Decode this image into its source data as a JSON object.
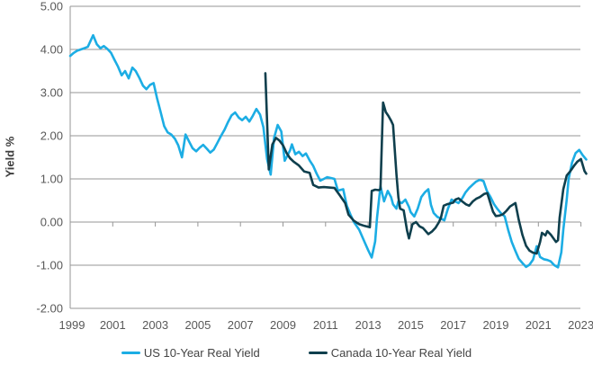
{
  "chart_data": {
    "type": "line",
    "title": "",
    "xlabel": "",
    "ylabel": "Yield %",
    "ylim": [
      -2.0,
      5.0
    ],
    "xlim": [
      1999.0,
      2023.3
    ],
    "grid": "horizontal",
    "legend_position": "bottom",
    "y_tick_labels": [
      "5.00",
      "4.00",
      "3.00",
      "2.00",
      "1.00",
      "0.00",
      "-1.00",
      "-2.00"
    ],
    "y_tick_values": [
      5,
      4,
      3,
      2,
      1,
      0,
      -1,
      -2
    ],
    "x_tick_labels": [
      "1999",
      "2001",
      "2003",
      "2005",
      "2007",
      "2009",
      "2011",
      "2013",
      "2015",
      "2017",
      "2019",
      "2021",
      "2023"
    ],
    "x_tick_values": [
      1999,
      2001,
      2003,
      2005,
      2007,
      2009,
      2011,
      2013,
      2015,
      2017,
      2019,
      2021,
      2023
    ],
    "series": [
      {
        "name": "US 10-Year Real Yield",
        "color": "#1CADE4",
        "points": [
          [
            1999.0,
            3.85
          ],
          [
            1999.17,
            3.92
          ],
          [
            1999.33,
            3.97
          ],
          [
            1999.5,
            4.0
          ],
          [
            1999.67,
            4.03
          ],
          [
            1999.83,
            4.06
          ],
          [
            2000.08,
            4.33
          ],
          [
            2000.25,
            4.12
          ],
          [
            2000.42,
            4.03
          ],
          [
            2000.58,
            4.08
          ],
          [
            2000.75,
            4.01
          ],
          [
            2000.92,
            3.92
          ],
          [
            2001.08,
            3.76
          ],
          [
            2001.25,
            3.6
          ],
          [
            2001.42,
            3.4
          ],
          [
            2001.58,
            3.5
          ],
          [
            2001.75,
            3.33
          ],
          [
            2001.92,
            3.58
          ],
          [
            2002.08,
            3.5
          ],
          [
            2002.25,
            3.34
          ],
          [
            2002.42,
            3.16
          ],
          [
            2002.58,
            3.08
          ],
          [
            2002.75,
            3.18
          ],
          [
            2002.92,
            3.22
          ],
          [
            2003.08,
            2.87
          ],
          [
            2003.25,
            2.55
          ],
          [
            2003.42,
            2.22
          ],
          [
            2003.58,
            2.08
          ],
          [
            2003.75,
            2.03
          ],
          [
            2003.92,
            1.93
          ],
          [
            2004.08,
            1.78
          ],
          [
            2004.25,
            1.5
          ],
          [
            2004.42,
            2.03
          ],
          [
            2004.58,
            1.87
          ],
          [
            2004.75,
            1.71
          ],
          [
            2004.92,
            1.64
          ],
          [
            2005.08,
            1.72
          ],
          [
            2005.25,
            1.79
          ],
          [
            2005.42,
            1.7
          ],
          [
            2005.58,
            1.61
          ],
          [
            2005.75,
            1.68
          ],
          [
            2005.92,
            1.84
          ],
          [
            2006.08,
            1.99
          ],
          [
            2006.25,
            2.14
          ],
          [
            2006.42,
            2.32
          ],
          [
            2006.58,
            2.47
          ],
          [
            2006.75,
            2.54
          ],
          [
            2006.92,
            2.42
          ],
          [
            2007.08,
            2.36
          ],
          [
            2007.25,
            2.44
          ],
          [
            2007.42,
            2.33
          ],
          [
            2007.58,
            2.46
          ],
          [
            2007.75,
            2.62
          ],
          [
            2007.92,
            2.49
          ],
          [
            2008.08,
            2.2
          ],
          [
            2008.25,
            1.46
          ],
          [
            2008.42,
            1.1
          ],
          [
            2008.58,
            1.95
          ],
          [
            2008.75,
            2.25
          ],
          [
            2008.92,
            2.1
          ],
          [
            2009.08,
            1.42
          ],
          [
            2009.33,
            1.66
          ],
          [
            2009.42,
            1.8
          ],
          [
            2009.58,
            1.57
          ],
          [
            2009.75,
            1.63
          ],
          [
            2009.92,
            1.53
          ],
          [
            2010.08,
            1.59
          ],
          [
            2010.25,
            1.43
          ],
          [
            2010.42,
            1.3
          ],
          [
            2010.58,
            1.12
          ],
          [
            2010.75,
            0.96
          ],
          [
            2010.92,
            1.0
          ],
          [
            2011.08,
            1.04
          ],
          [
            2011.25,
            1.02
          ],
          [
            2011.42,
            1.0
          ],
          [
            2011.58,
            0.73
          ],
          [
            2011.83,
            0.76
          ],
          [
            2012.0,
            0.38
          ],
          [
            2012.17,
            0.17
          ],
          [
            2012.33,
            0.0
          ],
          [
            2012.58,
            -0.18
          ],
          [
            2012.83,
            -0.46
          ],
          [
            2013.0,
            -0.65
          ],
          [
            2013.17,
            -0.82
          ],
          [
            2013.33,
            -0.45
          ],
          [
            2013.42,
            0.1
          ],
          [
            2013.58,
            0.83
          ],
          [
            2013.75,
            0.48
          ],
          [
            2013.92,
            0.72
          ],
          [
            2014.08,
            0.58
          ],
          [
            2014.17,
            0.41
          ],
          [
            2014.33,
            0.31
          ],
          [
            2014.42,
            0.48
          ],
          [
            2014.58,
            0.44
          ],
          [
            2014.75,
            0.52
          ],
          [
            2014.92,
            0.35
          ],
          [
            2015.0,
            0.23
          ],
          [
            2015.17,
            0.13
          ],
          [
            2015.33,
            0.31
          ],
          [
            2015.5,
            0.58
          ],
          [
            2015.67,
            0.69
          ],
          [
            2015.83,
            0.76
          ],
          [
            2015.95,
            0.4
          ],
          [
            2016.08,
            0.21
          ],
          [
            2016.25,
            0.12
          ],
          [
            2016.42,
            0.08
          ],
          [
            2016.58,
            0.04
          ],
          [
            2016.75,
            0.31
          ],
          [
            2016.92,
            0.52
          ],
          [
            2017.08,
            0.48
          ],
          [
            2017.25,
            0.44
          ],
          [
            2017.42,
            0.55
          ],
          [
            2017.58,
            0.69
          ],
          [
            2017.75,
            0.79
          ],
          [
            2017.92,
            0.87
          ],
          [
            2018.08,
            0.94
          ],
          [
            2018.25,
            0.98
          ],
          [
            2018.42,
            0.95
          ],
          [
            2018.58,
            0.72
          ],
          [
            2018.75,
            0.58
          ],
          [
            2018.92,
            0.41
          ],
          [
            2019.08,
            0.3
          ],
          [
            2019.25,
            0.2
          ],
          [
            2019.42,
            0.13
          ],
          [
            2019.58,
            -0.18
          ],
          [
            2019.75,
            -0.46
          ],
          [
            2019.92,
            -0.67
          ],
          [
            2020.08,
            -0.85
          ],
          [
            2020.25,
            -0.95
          ],
          [
            2020.42,
            -1.04
          ],
          [
            2020.58,
            -0.99
          ],
          [
            2020.75,
            -0.87
          ],
          [
            2020.92,
            -0.56
          ],
          [
            2021.08,
            -0.81
          ],
          [
            2021.25,
            -0.86
          ],
          [
            2021.42,
            -0.88
          ],
          [
            2021.58,
            -0.91
          ],
          [
            2021.75,
            -1.0
          ],
          [
            2021.92,
            -1.05
          ],
          [
            2022.08,
            -0.7
          ],
          [
            2022.17,
            -0.18
          ],
          [
            2022.33,
            0.52
          ],
          [
            2022.42,
            1.0
          ],
          [
            2022.58,
            1.38
          ],
          [
            2022.75,
            1.6
          ],
          [
            2022.92,
            1.67
          ],
          [
            2023.08,
            1.55
          ],
          [
            2023.25,
            1.45
          ]
        ]
      },
      {
        "name": "Canada 10-Year Real Yield",
        "color": "#0F3F4D",
        "points": [
          [
            2008.17,
            3.45
          ],
          [
            2008.33,
            1.22
          ],
          [
            2008.5,
            1.8
          ],
          [
            2008.67,
            1.95
          ],
          [
            2008.83,
            1.89
          ],
          [
            2009.0,
            1.78
          ],
          [
            2009.17,
            1.6
          ],
          [
            2009.33,
            1.48
          ],
          [
            2009.5,
            1.4
          ],
          [
            2009.75,
            1.31
          ],
          [
            2010.0,
            1.17
          ],
          [
            2010.25,
            1.14
          ],
          [
            2010.42,
            0.86
          ],
          [
            2010.67,
            0.8
          ],
          [
            2010.92,
            0.81
          ],
          [
            2011.17,
            0.8
          ],
          [
            2011.42,
            0.79
          ],
          [
            2011.67,
            0.62
          ],
          [
            2011.92,
            0.44
          ],
          [
            2012.08,
            0.17
          ],
          [
            2012.33,
            0.03
          ],
          [
            2012.58,
            -0.05
          ],
          [
            2012.83,
            -0.09
          ],
          [
            2013.08,
            -0.12
          ],
          [
            2013.17,
            0.72
          ],
          [
            2013.33,
            0.75
          ],
          [
            2013.5,
            0.74
          ],
          [
            2013.58,
            0.76
          ],
          [
            2013.7,
            2.77
          ],
          [
            2013.83,
            2.55
          ],
          [
            2013.95,
            2.46
          ],
          [
            2014.08,
            2.35
          ],
          [
            2014.17,
            2.25
          ],
          [
            2014.33,
            1.1
          ],
          [
            2014.42,
            0.58
          ],
          [
            2014.5,
            0.31
          ],
          [
            2014.67,
            0.27
          ],
          [
            2014.83,
            -0.2
          ],
          [
            2014.92,
            -0.38
          ],
          [
            2015.08,
            -0.05
          ],
          [
            2015.25,
            0.0
          ],
          [
            2015.42,
            -0.1
          ],
          [
            2015.58,
            -0.14
          ],
          [
            2015.83,
            -0.28
          ],
          [
            2016.0,
            -0.22
          ],
          [
            2016.17,
            -0.13
          ],
          [
            2016.33,
            0.0
          ],
          [
            2016.42,
            0.1
          ],
          [
            2016.55,
            0.38
          ],
          [
            2016.7,
            0.41
          ],
          [
            2017.0,
            0.45
          ],
          [
            2017.1,
            0.52
          ],
          [
            2017.25,
            0.55
          ],
          [
            2017.42,
            0.48
          ],
          [
            2017.6,
            0.41
          ],
          [
            2017.75,
            0.38
          ],
          [
            2017.92,
            0.48
          ],
          [
            2018.08,
            0.54
          ],
          [
            2018.25,
            0.58
          ],
          [
            2018.45,
            0.65
          ],
          [
            2018.6,
            0.67
          ],
          [
            2018.87,
            0.24
          ],
          [
            2019.0,
            0.14
          ],
          [
            2019.17,
            0.15
          ],
          [
            2019.33,
            0.18
          ],
          [
            2019.5,
            0.26
          ],
          [
            2019.67,
            0.36
          ],
          [
            2019.92,
            0.44
          ],
          [
            2020.08,
            0.05
          ],
          [
            2020.25,
            -0.3
          ],
          [
            2020.42,
            -0.55
          ],
          [
            2020.58,
            -0.66
          ],
          [
            2020.75,
            -0.71
          ],
          [
            2020.92,
            -0.73
          ],
          [
            2021.08,
            -0.46
          ],
          [
            2021.17,
            -0.25
          ],
          [
            2021.33,
            -0.31
          ],
          [
            2021.42,
            -0.21
          ],
          [
            2021.58,
            -0.29
          ],
          [
            2021.83,
            -0.46
          ],
          [
            2021.92,
            -0.42
          ],
          [
            2022.0,
            0.1
          ],
          [
            2022.17,
            0.76
          ],
          [
            2022.33,
            1.08
          ],
          [
            2022.5,
            1.18
          ],
          [
            2022.67,
            1.3
          ],
          [
            2022.83,
            1.4
          ],
          [
            2023.0,
            1.46
          ],
          [
            2023.17,
            1.18
          ],
          [
            2023.25,
            1.12
          ]
        ]
      }
    ]
  },
  "colors": {
    "background": "#ffffff",
    "gridline": "#969696",
    "axis_line": "#969696",
    "tick_text": "#595959",
    "axis_title_text": "#3d3d3d",
    "legend_text": "#434343",
    "us_line": "#1CADE4",
    "canada_line": "#0F3F4D"
  }
}
